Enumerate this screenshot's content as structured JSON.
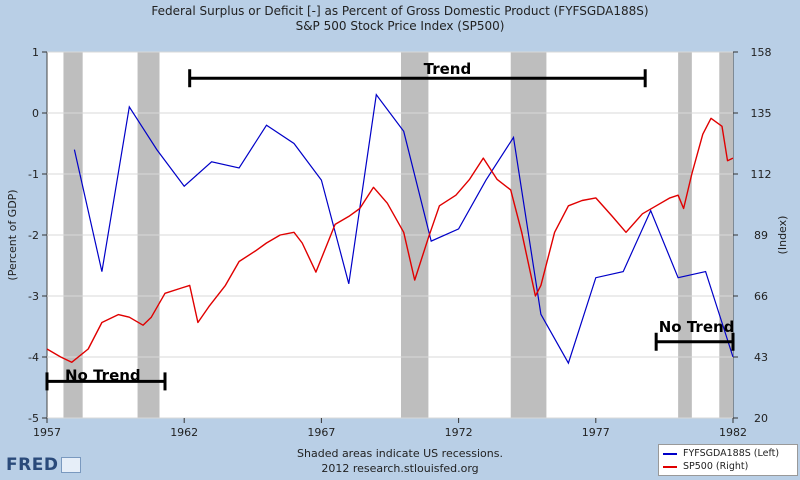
{
  "title_line1": "Federal Surplus or Deficit [-] as Percent of Gross Domestic Product (FYFSGDA188S)",
  "title_line2": "S&P 500 Stock Price Index (SP500)",
  "footer_line1": "Shaded areas indicate US recessions.",
  "footer_line2": "2012 research.stlouisfed.org",
  "logo_text": "FRED",
  "colors": {
    "background": "#b9cfe6",
    "plot_bg": "#ffffff",
    "recession": "#bebebe",
    "left_series": "#0000c8",
    "right_series": "#e00000",
    "annotation": "#000000"
  },
  "chart_data": {
    "type": "line",
    "xlabel": "",
    "ylabel_left": "(Percent of GDP)",
    "ylabel_right": "(Index)",
    "xlim": [
      1957,
      1982
    ],
    "ylim_left": [
      -5,
      1
    ],
    "ylim_right": [
      20,
      158
    ],
    "x_ticks": [
      "1957",
      "1962",
      "1967",
      "1972",
      "1977",
      "1982"
    ],
    "y_ticks_left": [
      "1",
      "0",
      "-1",
      "-2",
      "-3",
      "-4",
      "-5"
    ],
    "y_ticks_right": [
      "158",
      "135",
      "112",
      "89",
      "66",
      "43",
      "20"
    ],
    "grid": true,
    "legend_position": "bottom-right",
    "recessions": [
      [
        1957.6,
        1958.3
      ],
      [
        1960.3,
        1961.1
      ],
      [
        1969.9,
        1970.9
      ],
      [
        1973.9,
        1975.2
      ],
      [
        1980.0,
        1980.5
      ],
      [
        1981.5,
        1982.0
      ]
    ],
    "series": [
      {
        "name": "FYFSGDA188S (Left)",
        "axis": "left",
        "x": [
          1958.0,
          1959.0,
          1960.0,
          1961.0,
          1962.0,
          1963.0,
          1964.0,
          1965.0,
          1966.0,
          1967.0,
          1968.0,
          1969.0,
          1970.0,
          1971.0,
          1972.0,
          1973.0,
          1974.0,
          1975.0,
          1976.0,
          1977.0,
          1978.0,
          1979.0,
          1980.0,
          1981.0,
          1982.0
        ],
        "values": [
          -0.6,
          -2.6,
          0.1,
          -0.6,
          -1.2,
          -0.8,
          -0.9,
          -0.2,
          -0.5,
          -1.1,
          -2.8,
          0.3,
          -0.3,
          -2.1,
          -1.9,
          -1.1,
          -0.4,
          -3.3,
          -4.1,
          -2.7,
          -2.6,
          -1.6,
          -2.7,
          -2.6,
          -4.0
        ]
      },
      {
        "name": "SP500 (Right)",
        "axis": "right",
        "x": [
          1957.0,
          1957.5,
          1957.9,
          1958.5,
          1959.0,
          1959.6,
          1960.0,
          1960.5,
          1960.8,
          1961.3,
          1961.9,
          1962.2,
          1962.5,
          1962.9,
          1963.5,
          1964.0,
          1964.6,
          1965.0,
          1965.5,
          1966.0,
          1966.3,
          1966.8,
          1967.5,
          1968.0,
          1968.4,
          1968.9,
          1969.4,
          1970.0,
          1970.4,
          1970.9,
          1971.3,
          1971.9,
          1972.4,
          1972.9,
          1973.4,
          1973.9,
          1974.3,
          1974.8,
          1975.0,
          1975.5,
          1976.0,
          1976.5,
          1977.0,
          1977.6,
          1978.1,
          1978.7,
          1979.2,
          1979.7,
          1980.0,
          1980.2,
          1980.5,
          1980.9,
          1981.2,
          1981.6,
          1981.8,
          1982.0
        ],
        "values": [
          46,
          43,
          41,
          46,
          56,
          59,
          58,
          55,
          58,
          67,
          69,
          70,
          56,
          62,
          70,
          79,
          83,
          86,
          89,
          90,
          86,
          75,
          93,
          96,
          99,
          107,
          101,
          90,
          72,
          88,
          100,
          104,
          110,
          118,
          110,
          106,
          90,
          66,
          70,
          90,
          100,
          102,
          103,
          96,
          90,
          97,
          100,
          103,
          104,
          99,
          112,
          127,
          133,
          130,
          117,
          118
        ]
      }
    ],
    "annotations": [
      {
        "text": "Trend",
        "x_start": 1962.2,
        "x_end": 1978.8,
        "y_left": 0.57
      },
      {
        "text": "No Trend",
        "x_start": 1957.0,
        "x_end": 1961.3,
        "y_left": -4.4
      },
      {
        "text": "No Trend",
        "x_start": 1979.2,
        "x_end": 1982.0,
        "y_left": -3.75
      }
    ]
  }
}
